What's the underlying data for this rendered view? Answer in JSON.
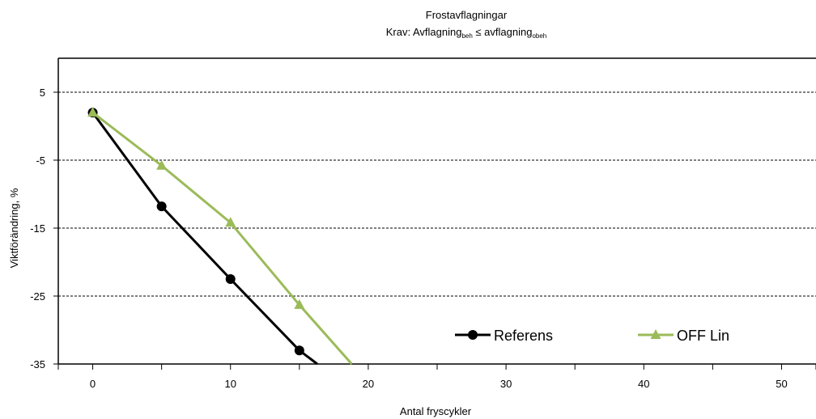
{
  "chart_data": {
    "type": "line",
    "title": "Frostavflagningar",
    "subtitle": {
      "prefix": "Krav: Avflagning",
      "sub1": "beh",
      "middle": " ≤ avflagning",
      "sub2": "obeh"
    },
    "xlabel": "Antal fryscykler",
    "ylabel": "Viktförändring, %",
    "xlim": [
      -2.5,
      52.5
    ],
    "ylim": [
      -35,
      10
    ],
    "x_ticks": [
      0,
      10,
      20,
      30,
      40,
      50
    ],
    "x_minor_ticks": [
      5,
      15,
      25,
      35,
      45
    ],
    "y_ticks": [
      5,
      -5,
      -15,
      -25,
      -35
    ],
    "grid": "horizontal dashed",
    "legend_position": "inside bottom-right",
    "series": [
      {
        "name": "Referens",
        "color": "#000000",
        "marker": "circle",
        "points": [
          [
            0,
            2
          ],
          [
            5,
            -11.8
          ],
          [
            10,
            -22.5
          ],
          [
            15,
            -33
          ],
          [
            16.3,
            -35
          ]
        ]
      },
      {
        "name": "OFF Lin",
        "color": "#9bbb59",
        "marker": "triangle",
        "points": [
          [
            0,
            2
          ],
          [
            5,
            -5.8
          ],
          [
            10,
            -14.2
          ],
          [
            15,
            -26.3
          ],
          [
            18.8,
            -35
          ]
        ]
      }
    ],
    "marker_points": 4
  }
}
